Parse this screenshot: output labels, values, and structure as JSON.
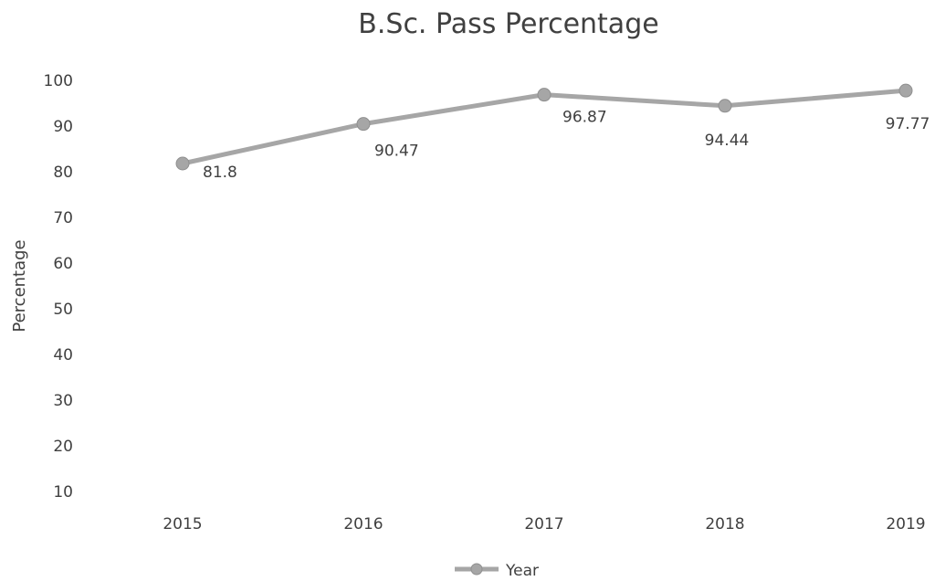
{
  "chart_data": {
    "type": "line",
    "title": "B.Sc. Pass Percentage",
    "xlabel": "",
    "ylabel": "Percentage",
    "categories": [
      "2015",
      "2016",
      "2017",
      "2018",
      "2019"
    ],
    "series": [
      {
        "name": "Year",
        "values": [
          81.8,
          90.47,
          96.87,
          94.44,
          97.77
        ],
        "color": "#a6a6a6"
      }
    ],
    "data_labels": [
      "81.8",
      "90.47",
      "96.87",
      "94.44",
      "97.77"
    ],
    "yticks": [
      10,
      20,
      30,
      40,
      50,
      60,
      70,
      80,
      90,
      100
    ],
    "ylim": [
      10,
      100
    ],
    "grid": false,
    "legend_position": "bottom"
  }
}
